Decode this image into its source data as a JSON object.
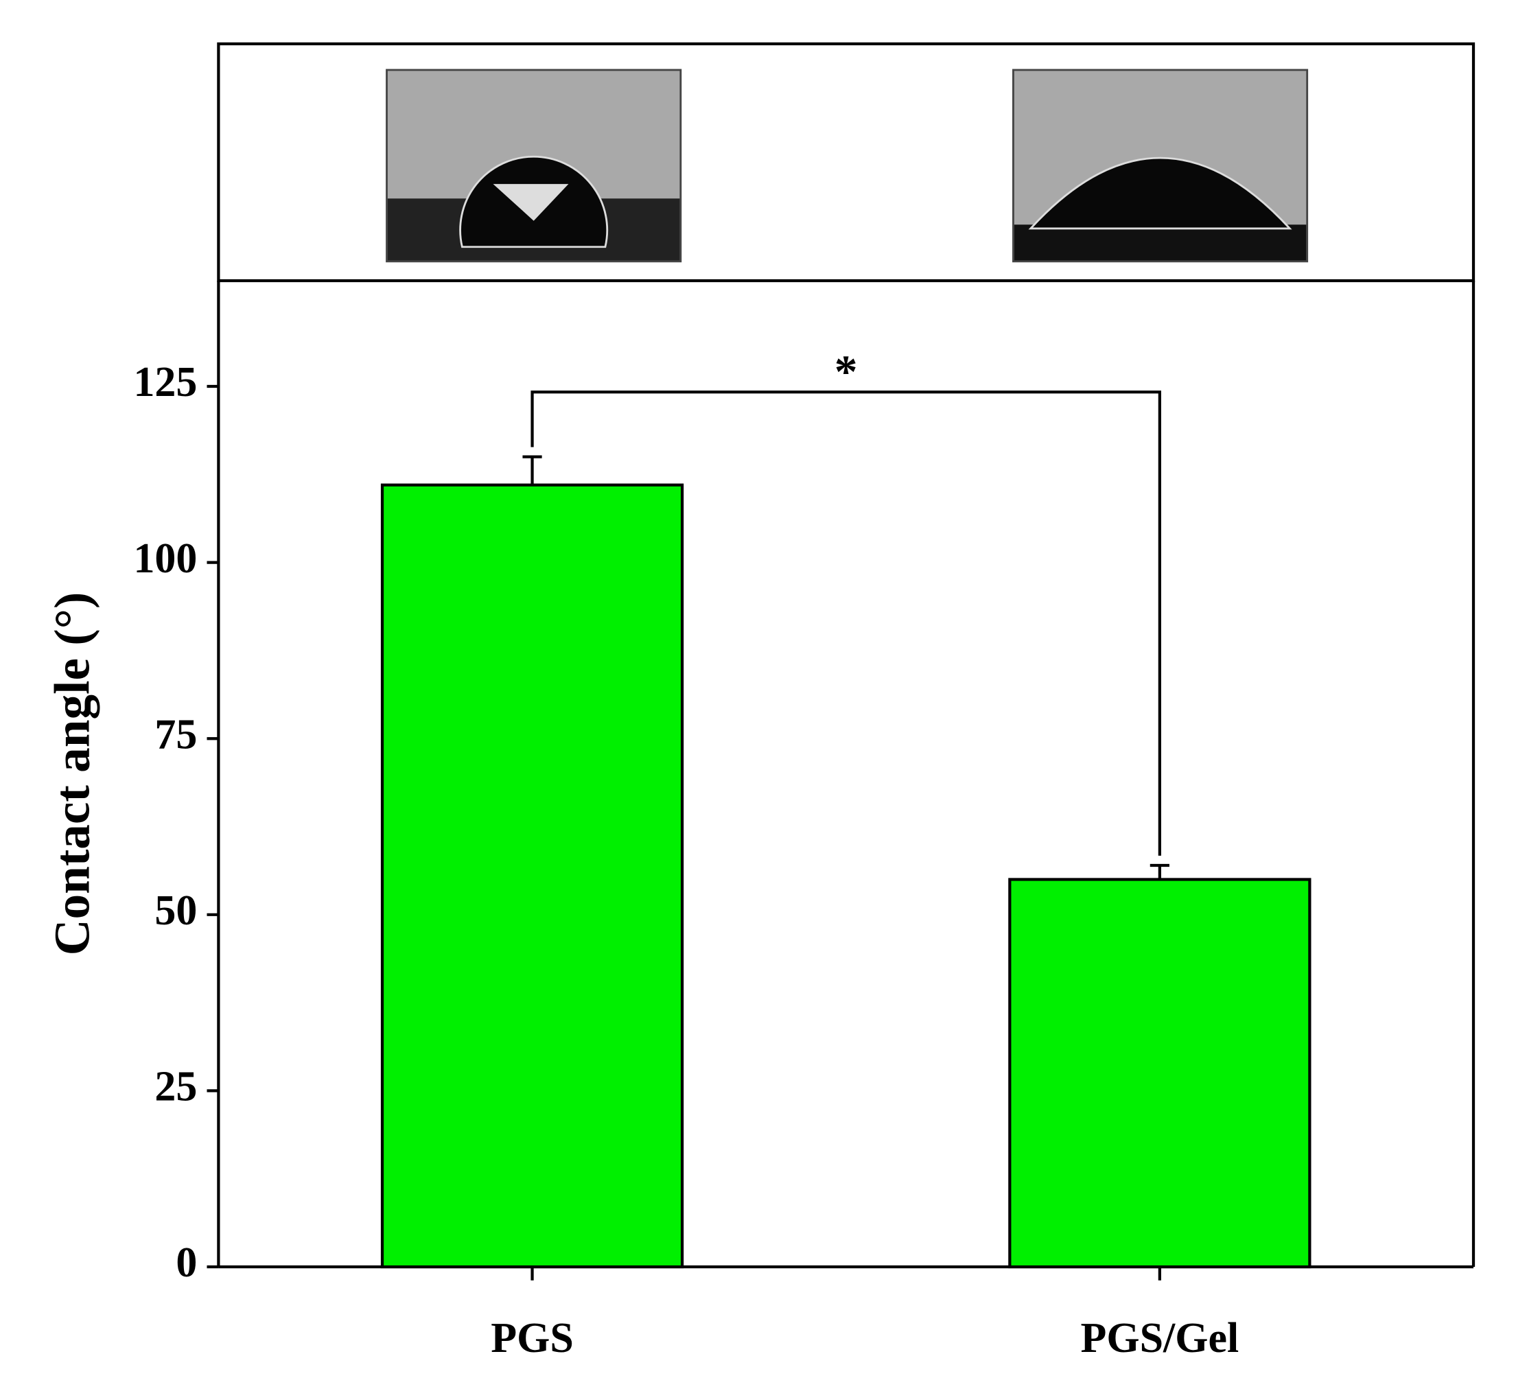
{
  "chart_data": {
    "type": "bar",
    "y_label": "Contact angle (°)",
    "categories": [
      "PGS",
      "PGS/Gel"
    ],
    "values": [
      111,
      55
    ],
    "errors": [
      4,
      2
    ],
    "color": "#00f000",
    "ylim": [
      0,
      140
    ],
    "yticks": [
      0,
      25,
      50,
      75,
      100,
      125
    ],
    "significance_label": "*"
  }
}
